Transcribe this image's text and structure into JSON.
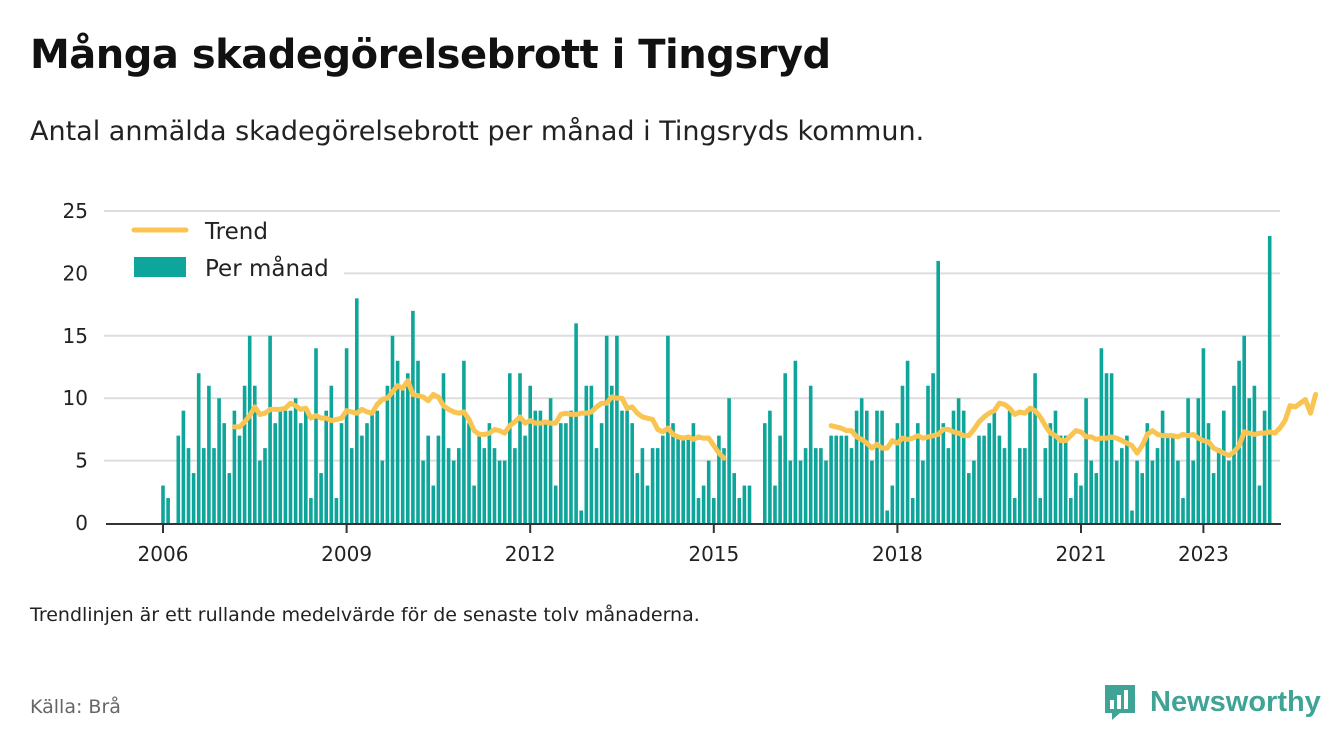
{
  "title": "Många skadegörelsebrott i Tingsryd",
  "subtitle": "Antal anmälda skadegörelsebrott per månad i Tingsryds kommun.",
  "note": "Trendlinjen är ett rullande medelvärde för de senaste tolv månaderna.",
  "source": "Källa: Brå",
  "brand": {
    "name": "Newsworthy",
    "icon": "newsworthy-logo-icon"
  },
  "colors": {
    "bar": "#0ea59a",
    "trend": "#f9c451",
    "grid": "#dddddd",
    "axis": "#333333",
    "brand": "#3fa496"
  },
  "chart_data": {
    "type": "bar",
    "start": "2006-01",
    "x_ticks": [
      "2006",
      "2009",
      "2012",
      "2015",
      "2018",
      "2021",
      "2023"
    ],
    "y_ticks": [
      0,
      5,
      10,
      15,
      20,
      25
    ],
    "ylim": [
      0,
      25
    ],
    "legend_position": "top-left",
    "grid": true,
    "series": [
      {
        "name": "Per månad",
        "type": "bar",
        "values": [
          3,
          2,
          0,
          7,
          9,
          6,
          4,
          12,
          6,
          11,
          6,
          10,
          8,
          4,
          9,
          7,
          11,
          15,
          11,
          5,
          6,
          15,
          8,
          9,
          9,
          9,
          10,
          8,
          9,
          2,
          14,
          4,
          9,
          11,
          2,
          8,
          14,
          6,
          18,
          7,
          8,
          9,
          9,
          5,
          11,
          15,
          13,
          11,
          12,
          17,
          13,
          5,
          7,
          3,
          7,
          12,
          6,
          5,
          6,
          13,
          8,
          3,
          7,
          6,
          8,
          6,
          5,
          5,
          12,
          6,
          12,
          7,
          11,
          9,
          9,
          8,
          10,
          3,
          8,
          8,
          9,
          16,
          1,
          11,
          11,
          6,
          8,
          15,
          11,
          15,
          9,
          9,
          8,
          4,
          6,
          3,
          6,
          6,
          7,
          15,
          8,
          7,
          7,
          7,
          8,
          2,
          3,
          5,
          2,
          7,
          6,
          10,
          4,
          2,
          3,
          3,
          null,
          null,
          8,
          9,
          3,
          7,
          12,
          5,
          13,
          5,
          6,
          11,
          6,
          6,
          5,
          7,
          7,
          7,
          7,
          6,
          9,
          10,
          9,
          5,
          9,
          9,
          1,
          3,
          8,
          11,
          13,
          2,
          8,
          5,
          11,
          12,
          21,
          8,
          6,
          9,
          10,
          9,
          4,
          5,
          7,
          7,
          8,
          9,
          7,
          6,
          9,
          2,
          6,
          6,
          9,
          12,
          2,
          6,
          8,
          9,
          7,
          7,
          2,
          4,
          3,
          10,
          5,
          4,
          14,
          12,
          12,
          5,
          6,
          7,
          1,
          5,
          4,
          8,
          5,
          6,
          9,
          7,
          7,
          5,
          2,
          10,
          5,
          10,
          14,
          8,
          4,
          6,
          9,
          5,
          11,
          13,
          15,
          10,
          11,
          3,
          9,
          23
        ]
      },
      {
        "name": "Trend",
        "type": "line",
        "values": [
          null,
          null,
          null,
          null,
          null,
          null,
          null,
          null,
          null,
          null,
          null,
          null,
          null,
          null,
          7.7,
          7.7,
          8.1,
          8.6,
          9.3,
          8.7,
          8.8,
          9.1,
          9.1,
          9.1,
          9.2,
          9.6,
          9.4,
          9.1,
          9.2,
          8.4,
          8.6,
          8.4,
          8.4,
          8.2,
          8.3,
          8.4,
          9.0,
          8.9,
          8.8,
          9.1,
          8.9,
          8.8,
          9.5,
          9.9,
          10.0,
          10.5,
          11.0,
          10.8,
          11.4,
          10.3,
          10.2,
          10.1,
          9.8,
          10.3,
          10.1,
          9.4,
          9.1,
          8.9,
          8.8,
          8.9,
          8.3,
          7.4,
          7.1,
          7.1,
          7.2,
          7.5,
          7.4,
          7.2,
          7.8,
          8.1,
          8.5,
          8.0,
          8.2,
          8.0,
          8.0,
          8.1,
          8.0,
          8.0,
          8.7,
          8.8,
          8.7,
          8.7,
          8.8,
          8.8,
          8.9,
          9.3,
          9.6,
          9.6,
          10.1,
          10.0,
          10.0,
          9.2,
          9.3,
          8.8,
          8.5,
          8.4,
          8.3,
          7.5,
          7.3,
          7.6,
          7.1,
          6.9,
          6.8,
          6.9,
          6.7,
          6.9,
          6.8,
          6.8,
          6.2,
          5.6,
          5.2,
          null,
          null,
          null,
          null,
          null,
          null,
          null,
          null,
          null,
          null,
          null,
          null,
          null,
          null,
          null,
          null,
          null,
          null,
          null,
          null,
          7.8,
          7.7,
          7.6,
          7.4,
          7.4,
          6.9,
          6.7,
          6.4,
          6.0,
          6.3,
          6.0,
          6.0,
          6.6,
          6.4,
          6.8,
          6.7,
          6.8,
          7.0,
          6.8,
          6.9,
          7.0,
          7.1,
          7.5,
          7.5,
          7.3,
          7.2,
          7.0,
          7.0,
          7.5,
          8.1,
          8.5,
          8.8,
          9.0,
          9.6,
          9.5,
          9.2,
          8.7,
          8.9,
          8.8,
          9.2,
          9.0,
          8.5,
          7.8,
          7.2,
          7.0,
          6.6,
          6.6,
          7.0,
          7.4,
          7.3,
          6.9,
          6.9,
          6.7,
          6.8,
          6.8,
          6.9,
          6.8,
          6.6,
          6.4,
          6.2,
          5.6,
          6.2,
          7.1,
          7.4,
          7.1,
          7.0,
          7.0,
          7.0,
          6.9,
          7.1,
          7.0,
          7.1,
          6.8,
          6.6,
          6.5,
          6.0,
          5.8,
          5.6,
          5.4,
          5.7,
          6.2,
          7.3,
          7.2,
          7.1,
          7.2,
          7.2,
          7.3,
          7.2,
          7.6,
          8.2,
          9.4,
          9.3,
          9.6,
          9.9,
          8.8,
          10.3
        ]
      }
    ]
  }
}
